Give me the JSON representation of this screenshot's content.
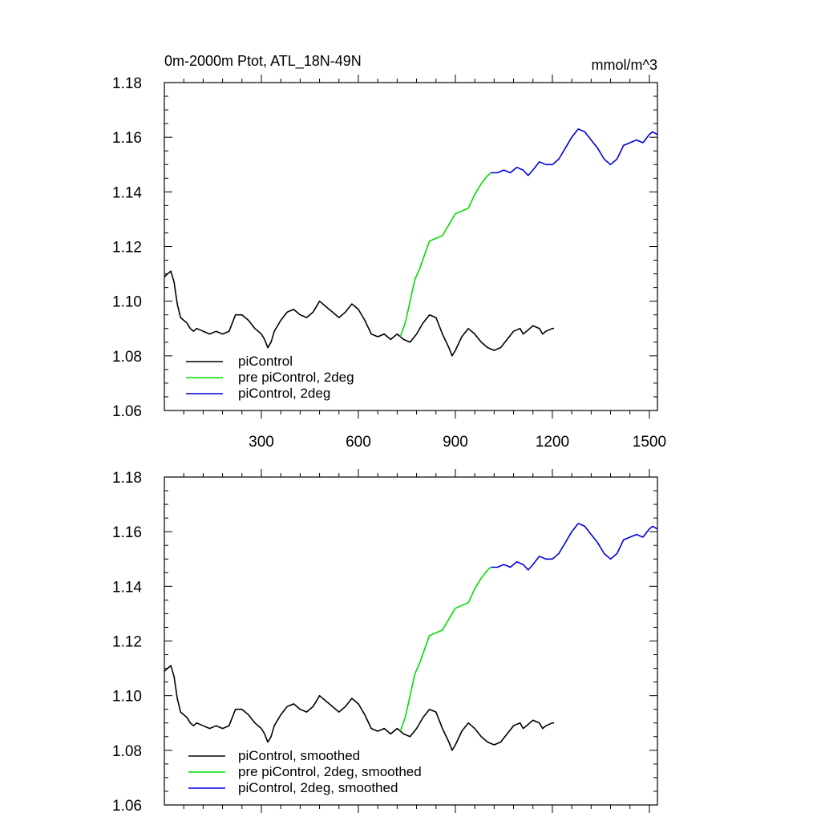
{
  "chart_data": [
    {
      "type": "line",
      "title": "0m-2000m Ptot, ATL_18N-49N",
      "units": "mmol/m^3",
      "xlim": [
        0,
        1525
      ],
      "ylim": [
        1.06,
        1.18
      ],
      "x_ticks": [
        300,
        600,
        900,
        1200,
        1500
      ],
      "x_tick_labels": [
        "300",
        "600",
        "900",
        "1200",
        "1500"
      ],
      "y_ticks": [
        1.06,
        1.08,
        1.1,
        1.12,
        1.14,
        1.16,
        1.18
      ],
      "y_tick_labels": [
        "1.06",
        "1.08",
        "1.10",
        "1.12",
        "1.14",
        "1.16",
        "1.18"
      ],
      "legend_position": "bottom-left",
      "series": [
        {
          "name": "piControl",
          "color": "#000000",
          "points": [
            [
              1,
              1.109
            ],
            [
              10,
              1.11
            ],
            [
              20,
              1.111
            ],
            [
              30,
              1.107
            ],
            [
              40,
              1.099
            ],
            [
              50,
              1.094
            ],
            [
              60,
              1.093
            ],
            [
              70,
              1.092
            ],
            [
              80,
              1.09
            ],
            [
              90,
              1.089
            ],
            [
              100,
              1.09
            ],
            [
              120,
              1.089
            ],
            [
              140,
              1.088
            ],
            [
              160,
              1.089
            ],
            [
              180,
              1.088
            ],
            [
              200,
              1.089
            ],
            [
              210,
              1.092
            ],
            [
              220,
              1.095
            ],
            [
              240,
              1.095
            ],
            [
              260,
              1.093
            ],
            [
              280,
              1.09
            ],
            [
              300,
              1.088
            ],
            [
              310,
              1.086
            ],
            [
              320,
              1.083
            ],
            [
              330,
              1.085
            ],
            [
              340,
              1.089
            ],
            [
              360,
              1.093
            ],
            [
              380,
              1.096
            ],
            [
              400,
              1.097
            ],
            [
              420,
              1.095
            ],
            [
              440,
              1.094
            ],
            [
              460,
              1.096
            ],
            [
              480,
              1.1
            ],
            [
              500,
              1.098
            ],
            [
              520,
              1.096
            ],
            [
              540,
              1.094
            ],
            [
              560,
              1.096
            ],
            [
              580,
              1.099
            ],
            [
              600,
              1.097
            ],
            [
              620,
              1.093
            ],
            [
              640,
              1.088
            ],
            [
              660,
              1.087
            ],
            [
              680,
              1.088
            ],
            [
              700,
              1.086
            ],
            [
              720,
              1.088
            ],
            [
              730,
              1.087
            ],
            [
              740,
              1.086
            ],
            [
              760,
              1.085
            ],
            [
              780,
              1.088
            ],
            [
              800,
              1.092
            ],
            [
              820,
              1.095
            ],
            [
              840,
              1.094
            ],
            [
              860,
              1.088
            ],
            [
              880,
              1.083
            ],
            [
              890,
              1.08
            ],
            [
              900,
              1.082
            ],
            [
              920,
              1.087
            ],
            [
              940,
              1.09
            ],
            [
              960,
              1.088
            ],
            [
              980,
              1.085
            ],
            [
              1000,
              1.083
            ],
            [
              1020,
              1.082
            ],
            [
              1040,
              1.083
            ],
            [
              1060,
              1.086
            ],
            [
              1080,
              1.089
            ],
            [
              1100,
              1.09
            ],
            [
              1110,
              1.088
            ],
            [
              1120,
              1.089
            ],
            [
              1140,
              1.091
            ],
            [
              1160,
              1.09
            ],
            [
              1170,
              1.088
            ],
            [
              1180,
              1.089
            ],
            [
              1200,
              1.09
            ],
            [
              1205,
              1.09
            ]
          ]
        },
        {
          "name": "pre piControl, 2deg",
          "color": "#00dd00",
          "points": [
            [
              730,
              1.087
            ],
            [
              745,
              1.092
            ],
            [
              760,
              1.1
            ],
            [
              775,
              1.108
            ],
            [
              790,
              1.112
            ],
            [
              805,
              1.117
            ],
            [
              820,
              1.122
            ],
            [
              840,
              1.123
            ],
            [
              860,
              1.124
            ],
            [
              880,
              1.128
            ],
            [
              900,
              1.132
            ],
            [
              920,
              1.133
            ],
            [
              940,
              1.134
            ],
            [
              960,
              1.139
            ],
            [
              980,
              1.143
            ],
            [
              1000,
              1.146
            ],
            [
              1010,
              1.147
            ]
          ]
        },
        {
          "name": "piControl, 2deg",
          "color": "#0000dd",
          "points": [
            [
              1010,
              1.147
            ],
            [
              1030,
              1.147
            ],
            [
              1050,
              1.148
            ],
            [
              1070,
              1.147
            ],
            [
              1090,
              1.149
            ],
            [
              1110,
              1.148
            ],
            [
              1125,
              1.146
            ],
            [
              1140,
              1.148
            ],
            [
              1160,
              1.151
            ],
            [
              1180,
              1.15
            ],
            [
              1200,
              1.15
            ],
            [
              1220,
              1.152
            ],
            [
              1240,
              1.156
            ],
            [
              1260,
              1.16
            ],
            [
              1280,
              1.163
            ],
            [
              1300,
              1.162
            ],
            [
              1320,
              1.159
            ],
            [
              1340,
              1.156
            ],
            [
              1360,
              1.152
            ],
            [
              1380,
              1.15
            ],
            [
              1400,
              1.152
            ],
            [
              1420,
              1.157
            ],
            [
              1440,
              1.158
            ],
            [
              1460,
              1.159
            ],
            [
              1480,
              1.158
            ],
            [
              1500,
              1.161
            ],
            [
              1510,
              1.162
            ],
            [
              1525,
              1.161
            ]
          ]
        }
      ]
    },
    {
      "type": "line",
      "xlim": [
        0,
        1525
      ],
      "ylim": [
        1.06,
        1.18
      ],
      "x_ticks": [
        300,
        600,
        900,
        1200,
        1500
      ],
      "y_ticks": [
        1.06,
        1.08,
        1.1,
        1.12,
        1.14,
        1.16,
        1.18
      ],
      "y_tick_labels": [
        "1.06",
        "1.08",
        "1.10",
        "1.12",
        "1.14",
        "1.16",
        "1.18"
      ],
      "legend_position": "bottom-left",
      "series": [
        {
          "name": "piControl, smoothed",
          "color": "#000000",
          "points": [
            [
              1,
              1.109
            ],
            [
              10,
              1.11
            ],
            [
              20,
              1.111
            ],
            [
              30,
              1.107
            ],
            [
              40,
              1.099
            ],
            [
              50,
              1.094
            ],
            [
              60,
              1.093
            ],
            [
              70,
              1.092
            ],
            [
              80,
              1.09
            ],
            [
              90,
              1.089
            ],
            [
              100,
              1.09
            ],
            [
              120,
              1.089
            ],
            [
              140,
              1.088
            ],
            [
              160,
              1.089
            ],
            [
              180,
              1.088
            ],
            [
              200,
              1.089
            ],
            [
              210,
              1.092
            ],
            [
              220,
              1.095
            ],
            [
              240,
              1.095
            ],
            [
              260,
              1.093
            ],
            [
              280,
              1.09
            ],
            [
              300,
              1.088
            ],
            [
              310,
              1.086
            ],
            [
              320,
              1.083
            ],
            [
              330,
              1.085
            ],
            [
              340,
              1.089
            ],
            [
              360,
              1.093
            ],
            [
              380,
              1.096
            ],
            [
              400,
              1.097
            ],
            [
              420,
              1.095
            ],
            [
              440,
              1.094
            ],
            [
              460,
              1.096
            ],
            [
              480,
              1.1
            ],
            [
              500,
              1.098
            ],
            [
              520,
              1.096
            ],
            [
              540,
              1.094
            ],
            [
              560,
              1.096
            ],
            [
              580,
              1.099
            ],
            [
              600,
              1.097
            ],
            [
              620,
              1.093
            ],
            [
              640,
              1.088
            ],
            [
              660,
              1.087
            ],
            [
              680,
              1.088
            ],
            [
              700,
              1.086
            ],
            [
              720,
              1.088
            ],
            [
              730,
              1.087
            ],
            [
              740,
              1.086
            ],
            [
              760,
              1.085
            ],
            [
              780,
              1.088
            ],
            [
              800,
              1.092
            ],
            [
              820,
              1.095
            ],
            [
              840,
              1.094
            ],
            [
              860,
              1.088
            ],
            [
              880,
              1.083
            ],
            [
              890,
              1.08
            ],
            [
              900,
              1.082
            ],
            [
              920,
              1.087
            ],
            [
              940,
              1.09
            ],
            [
              960,
              1.088
            ],
            [
              980,
              1.085
            ],
            [
              1000,
              1.083
            ],
            [
              1020,
              1.082
            ],
            [
              1040,
              1.083
            ],
            [
              1060,
              1.086
            ],
            [
              1080,
              1.089
            ],
            [
              1100,
              1.09
            ],
            [
              1110,
              1.088
            ],
            [
              1120,
              1.089
            ],
            [
              1140,
              1.091
            ],
            [
              1160,
              1.09
            ],
            [
              1170,
              1.088
            ],
            [
              1180,
              1.089
            ],
            [
              1200,
              1.09
            ],
            [
              1205,
              1.09
            ]
          ]
        },
        {
          "name": "pre piControl, 2deg, smoothed",
          "color": "#00dd00",
          "points": [
            [
              730,
              1.087
            ],
            [
              745,
              1.092
            ],
            [
              760,
              1.1
            ],
            [
              775,
              1.108
            ],
            [
              790,
              1.112
            ],
            [
              805,
              1.117
            ],
            [
              820,
              1.122
            ],
            [
              840,
              1.123
            ],
            [
              860,
              1.124
            ],
            [
              880,
              1.128
            ],
            [
              900,
              1.132
            ],
            [
              920,
              1.133
            ],
            [
              940,
              1.134
            ],
            [
              960,
              1.139
            ],
            [
              980,
              1.143
            ],
            [
              1000,
              1.146
            ],
            [
              1010,
              1.147
            ]
          ]
        },
        {
          "name": "piControl, 2deg, smoothed",
          "color": "#0000dd",
          "points": [
            [
              1010,
              1.147
            ],
            [
              1030,
              1.147
            ],
            [
              1050,
              1.148
            ],
            [
              1070,
              1.147
            ],
            [
              1090,
              1.149
            ],
            [
              1110,
              1.148
            ],
            [
              1125,
              1.146
            ],
            [
              1140,
              1.148
            ],
            [
              1160,
              1.151
            ],
            [
              1180,
              1.15
            ],
            [
              1200,
              1.15
            ],
            [
              1220,
              1.152
            ],
            [
              1240,
              1.156
            ],
            [
              1260,
              1.16
            ],
            [
              1280,
              1.163
            ],
            [
              1300,
              1.162
            ],
            [
              1320,
              1.159
            ],
            [
              1340,
              1.156
            ],
            [
              1360,
              1.152
            ],
            [
              1380,
              1.15
            ],
            [
              1400,
              1.152
            ],
            [
              1420,
              1.157
            ],
            [
              1440,
              1.158
            ],
            [
              1460,
              1.159
            ],
            [
              1480,
              1.158
            ],
            [
              1500,
              1.161
            ],
            [
              1510,
              1.162
            ],
            [
              1525,
              1.161
            ]
          ]
        }
      ]
    }
  ]
}
